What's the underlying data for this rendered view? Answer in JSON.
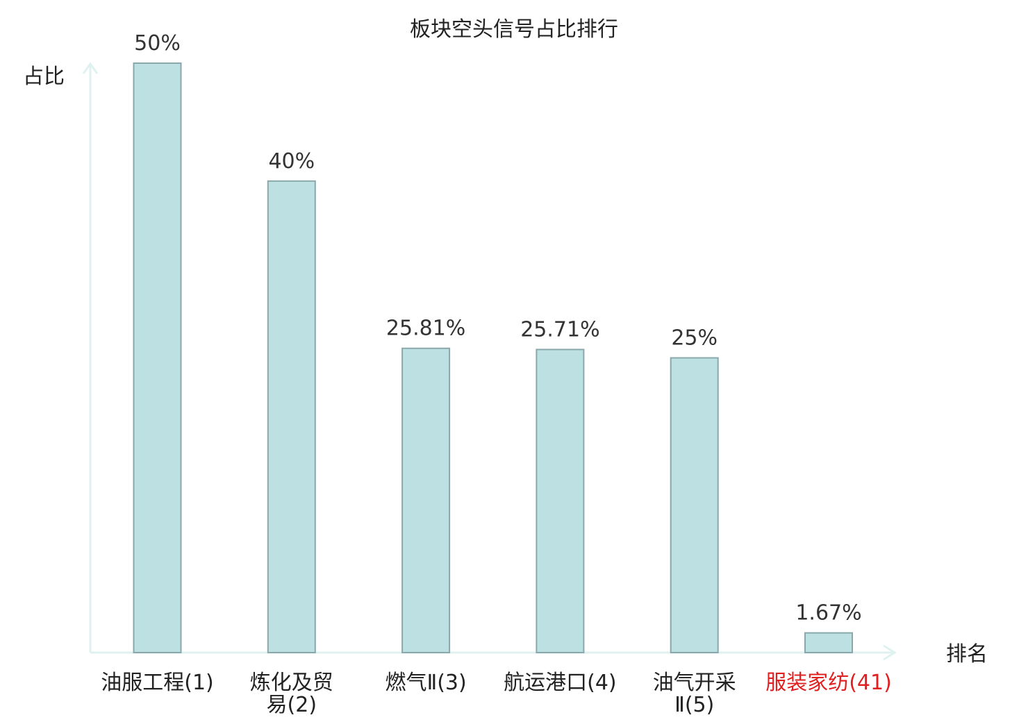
{
  "chart_data": {
    "type": "bar",
    "title": "板块空头信号占比排行",
    "ylabel": "占比",
    "xlabel": "排名",
    "ylim": [
      0,
      50
    ],
    "categories": [
      {
        "name": "油服工程",
        "rank": "(1)",
        "name_lines": [
          "油服工程(1)"
        ],
        "highlight": false
      },
      {
        "name": "炼化及贸易",
        "rank": "(2)",
        "name_lines": [
          "炼化及贸",
          "易(2)"
        ],
        "highlight": false
      },
      {
        "name": "燃气Ⅱ",
        "rank": "(3)",
        "name_lines": [
          "燃气Ⅱ(3)"
        ],
        "highlight": false
      },
      {
        "name": "航运港口",
        "rank": "(4)",
        "name_lines": [
          "航运港口(4)"
        ],
        "highlight": false
      },
      {
        "name": "油气开采Ⅱ",
        "rank": "(5)",
        "name_lines": [
          "油气开采",
          "Ⅱ(5)"
        ],
        "highlight": false
      },
      {
        "name": "服装家纺",
        "rank": "(41)",
        "name_lines": [
          "服装家纺(41)"
        ],
        "highlight": true
      }
    ],
    "values": [
      50,
      40,
      25.81,
      25.71,
      25,
      1.67
    ],
    "value_labels": [
      "50%",
      "40%",
      "25.81%",
      "25.71%",
      "25%",
      "1.67%"
    ],
    "grid": false,
    "legend": "none"
  },
  "colors": {
    "bar_fill": "#bde0e3",
    "bar_stroke": "#8aa8ab",
    "axis": "#dff2ef",
    "highlight_text": "#e02020",
    "text": "#222222"
  }
}
